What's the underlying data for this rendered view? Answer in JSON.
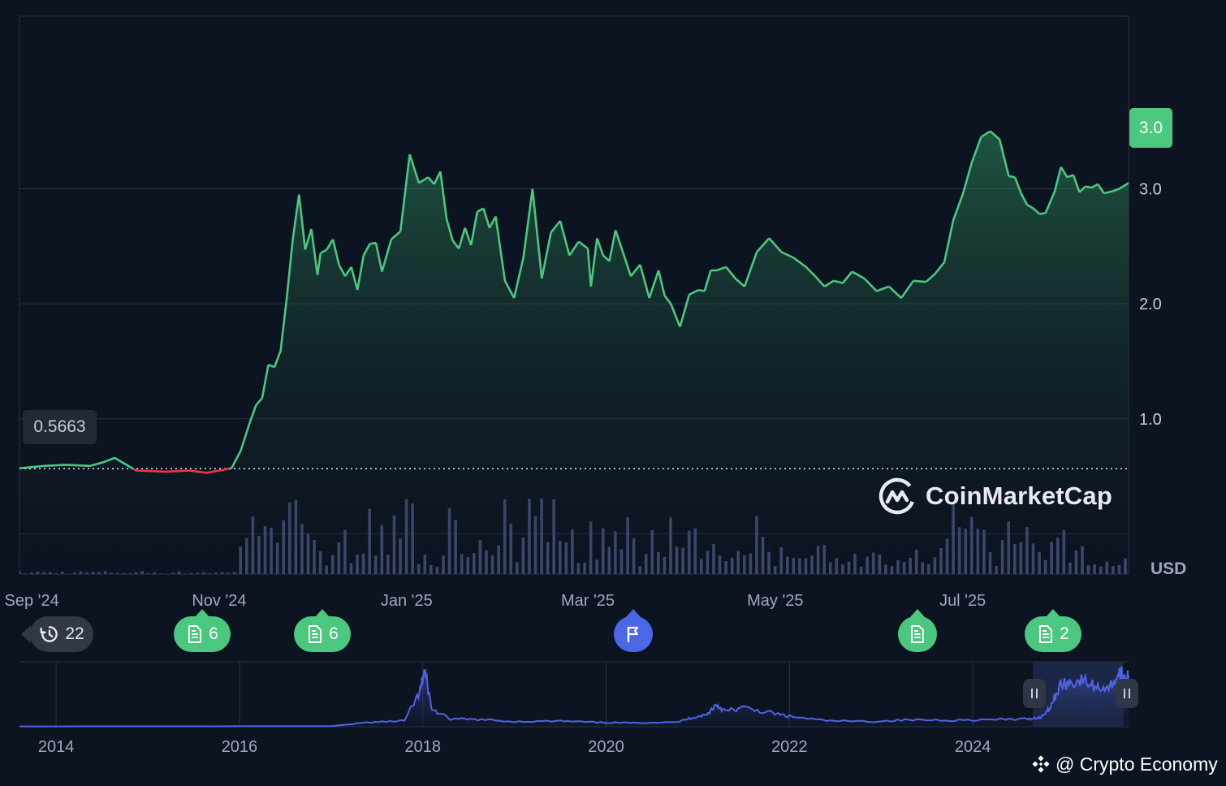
{
  "chart_data": [
    {
      "type": "line",
      "title": "",
      "currency_label": "USD",
      "y_ticks": [
        "1.0",
        "2.0",
        "3.0"
      ],
      "ylim": [
        -0.35,
        4.5
      ],
      "x_ticks": [
        "Sep '24",
        "Nov '24",
        "Jan '25",
        "Mar '25",
        "May '25",
        "Jul '25"
      ],
      "baseline_label": "0.5663",
      "baseline_value": 0.5663,
      "current_label": "3.0",
      "colors": {
        "up": "#4bc77f",
        "down": "#ea3943",
        "volume": "#3f4a70"
      },
      "price": {
        "x": [
          "2024-08-28",
          "2024-09-05",
          "2024-09-12",
          "2024-09-20",
          "2024-09-24",
          "2024-09-28",
          "2024-10-05",
          "2024-10-15",
          "2024-10-22",
          "2024-10-28",
          "2024-11-01",
          "2024-11-05",
          "2024-11-08",
          "2024-11-11",
          "2024-11-13",
          "2024-11-15",
          "2024-11-17",
          "2024-11-19",
          "2024-11-21",
          "2024-11-23",
          "2024-11-25",
          "2024-11-27",
          "2024-11-29",
          "2024-12-01",
          "2024-12-03",
          "2024-12-04",
          "2024-12-06",
          "2024-12-08",
          "2024-12-10",
          "2024-12-12",
          "2024-12-14",
          "2024-12-16",
          "2024-12-18",
          "2024-12-20",
          "2024-12-22",
          "2024-12-24",
          "2024-12-27",
          "2024-12-30",
          "2025-01-02",
          "2025-01-05",
          "2025-01-08",
          "2025-01-10",
          "2025-01-12",
          "2025-01-14",
          "2025-01-16",
          "2025-01-18",
          "2025-01-20",
          "2025-01-22",
          "2025-01-24",
          "2025-01-26",
          "2025-01-28",
          "2025-01-30",
          "2025-02-02",
          "2025-02-05",
          "2025-02-08",
          "2025-02-11",
          "2025-02-14",
          "2025-02-17",
          "2025-02-20",
          "2025-02-23",
          "2025-02-26",
          "2025-03-01",
          "2025-03-02",
          "2025-03-04",
          "2025-03-06",
          "2025-03-08",
          "2025-03-10",
          "2025-03-12",
          "2025-03-15",
          "2025-03-18",
          "2025-03-21",
          "2025-03-24",
          "2025-03-26",
          "2025-03-28",
          "2025-03-31",
          "2025-04-03",
          "2025-04-06",
          "2025-04-08",
          "2025-04-10",
          "2025-04-12",
          "2025-04-15",
          "2025-04-18",
          "2025-04-21",
          "2025-04-25",
          "2025-04-29",
          "2025-05-03",
          "2025-05-07",
          "2025-05-11",
          "2025-05-14",
          "2025-05-17",
          "2025-05-20",
          "2025-05-23",
          "2025-05-26",
          "2025-05-30",
          "2025-06-03",
          "2025-06-07",
          "2025-06-11",
          "2025-06-15",
          "2025-06-19",
          "2025-06-22",
          "2025-06-25",
          "2025-06-28",
          "2025-07-01",
          "2025-07-04",
          "2025-07-07",
          "2025-07-10",
          "2025-07-13",
          "2025-07-16",
          "2025-07-18",
          "2025-07-20",
          "2025-07-22",
          "2025-07-24",
          "2025-07-26",
          "2025-07-28",
          "2025-07-31",
          "2025-08-02",
          "2025-08-04",
          "2025-08-06",
          "2025-08-08",
          "2025-08-10",
          "2025-08-12",
          "2025-08-14",
          "2025-08-16",
          "2025-08-19",
          "2025-08-21",
          "2025-08-24"
        ],
        "y": [
          0.57,
          0.59,
          0.6,
          0.59,
          0.62,
          0.66,
          0.55,
          0.54,
          0.55,
          0.53,
          0.55,
          0.57,
          0.72,
          0.97,
          1.12,
          1.18,
          1.47,
          1.45,
          1.59,
          2.05,
          2.57,
          2.95,
          2.47,
          2.65,
          2.25,
          2.44,
          2.47,
          2.56,
          2.34,
          2.24,
          2.32,
          2.12,
          2.42,
          2.52,
          2.53,
          2.28,
          2.56,
          2.63,
          3.3,
          3.05,
          3.1,
          3.04,
          3.15,
          2.74,
          2.55,
          2.48,
          2.66,
          2.51,
          2.8,
          2.83,
          2.66,
          2.76,
          2.2,
          2.05,
          2.4,
          3.0,
          2.22,
          2.62,
          2.72,
          2.42,
          2.54,
          2.48,
          2.15,
          2.57,
          2.42,
          2.37,
          2.64,
          2.48,
          2.24,
          2.34,
          2.05,
          2.29,
          2.07,
          2.0,
          1.8,
          2.08,
          2.12,
          2.11,
          2.29,
          2.29,
          2.32,
          2.22,
          2.15,
          2.45,
          2.57,
          2.45,
          2.4,
          2.32,
          2.24,
          2.15,
          2.2,
          2.18,
          2.28,
          2.22,
          2.11,
          2.15,
          2.05,
          2.2,
          2.19,
          2.26,
          2.36,
          2.73,
          2.95,
          3.23,
          3.45,
          3.5,
          3.43,
          3.11,
          3.1,
          2.96,
          2.86,
          2.83,
          2.78,
          2.79,
          2.98,
          3.19,
          3.1,
          3.12,
          2.97,
          3.02,
          3.01,
          3.04,
          2.96,
          2.98,
          3.0,
          3.05
        ]
      },
      "volume": {
        "max": 96
      }
    },
    {
      "type": "area",
      "role": "navigator",
      "x_ticks": [
        "2014",
        "2016",
        "2018",
        "2020",
        "2022",
        "2024"
      ],
      "xlim": [
        2013.6,
        2025.7
      ],
      "ylim": [
        0,
        3.5
      ],
      "selection": [
        "2024-08-28",
        "2025-08-24"
      ],
      "x": [
        2013.6,
        2017.0,
        2017.4,
        2017.8,
        2017.97,
        2018.02,
        2018.1,
        2018.3,
        2018.6,
        2019.0,
        2019.5,
        2019.9,
        2020.3,
        2020.8,
        2020.95,
        2021.1,
        2021.2,
        2021.3,
        2021.5,
        2021.8,
        2022.0,
        2022.4,
        2022.9,
        2023.3,
        2023.8,
        2024.3,
        2024.6,
        2024.75,
        2024.85,
        2024.95,
        2025.05,
        2025.2,
        2025.35,
        2025.5,
        2025.6,
        2025.65,
        2025.7
      ],
      "y": [
        0.02,
        0.03,
        0.25,
        0.35,
        2.0,
        3.3,
        1.0,
        0.45,
        0.42,
        0.3,
        0.33,
        0.25,
        0.22,
        0.3,
        0.55,
        0.7,
        1.3,
        0.9,
        1.1,
        0.8,
        0.6,
        0.35,
        0.3,
        0.4,
        0.38,
        0.42,
        0.45,
        0.56,
        1.2,
        2.4,
        2.55,
        2.7,
        2.3,
        2.35,
        3.1,
        2.9,
        3.0
      ]
    }
  ],
  "events": [
    {
      "label": "22",
      "icon": "history-icon",
      "kind": "grey"
    },
    {
      "label": "6",
      "icon": "document-icon",
      "kind": "green"
    },
    {
      "label": "6",
      "icon": "document-icon",
      "kind": "green"
    },
    {
      "label": "",
      "icon": "flag-icon",
      "kind": "blue"
    },
    {
      "label": "",
      "icon": "document-icon",
      "kind": "green"
    },
    {
      "label": "2",
      "icon": "document-icon",
      "kind": "green"
    }
  ],
  "logo": {
    "text": "CoinMarketCap"
  },
  "watermark": {
    "text": "@ Crypto Economy"
  }
}
